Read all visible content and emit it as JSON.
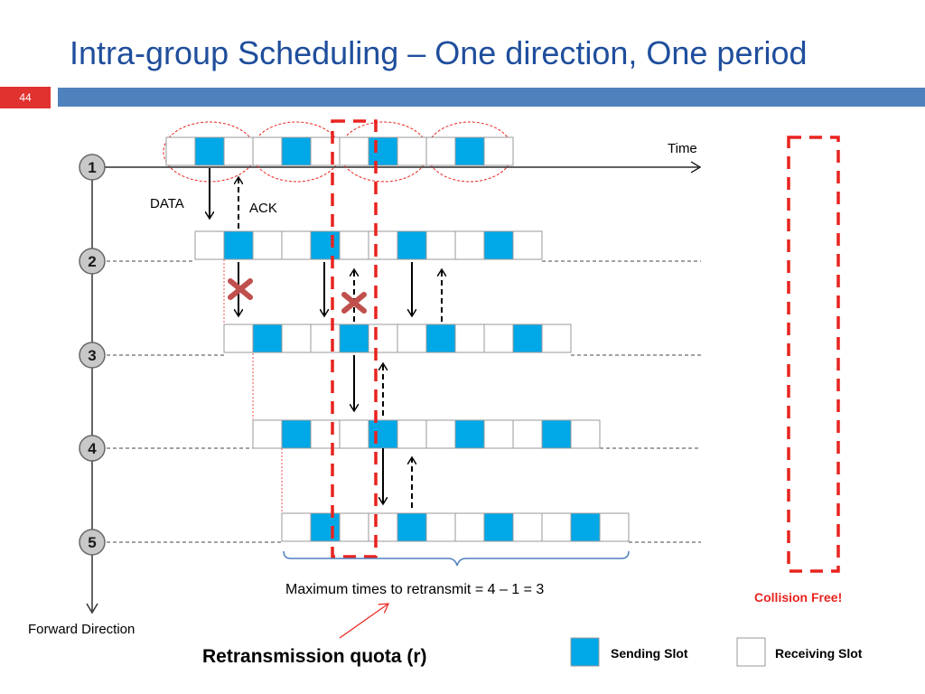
{
  "slide": {
    "title": "Intra-group Scheduling – One direction, One period",
    "number": "44"
  },
  "colors": {
    "sending": "#00a8e8",
    "receiving": "#ffffff",
    "title": "#1f4e9c",
    "bar": "#4f81bd",
    "badge": "#e0322e",
    "highlight": "#e8231f",
    "collision": "#c0504d"
  },
  "nodes": [
    "1",
    "2",
    "3",
    "4",
    "5"
  ],
  "labels": {
    "time": "Time",
    "data": "DATA",
    "ack": "ACK",
    "forward_direction": "Forward Direction",
    "max_retransmit": "Maximum times to retransmit  = 4 – 1 = 3",
    "quota": "Retransmission quota (r)",
    "collision_free": "Collision Free!"
  },
  "legend": {
    "sending": "Sending Slot",
    "receiving": "Receiving Slot"
  }
}
